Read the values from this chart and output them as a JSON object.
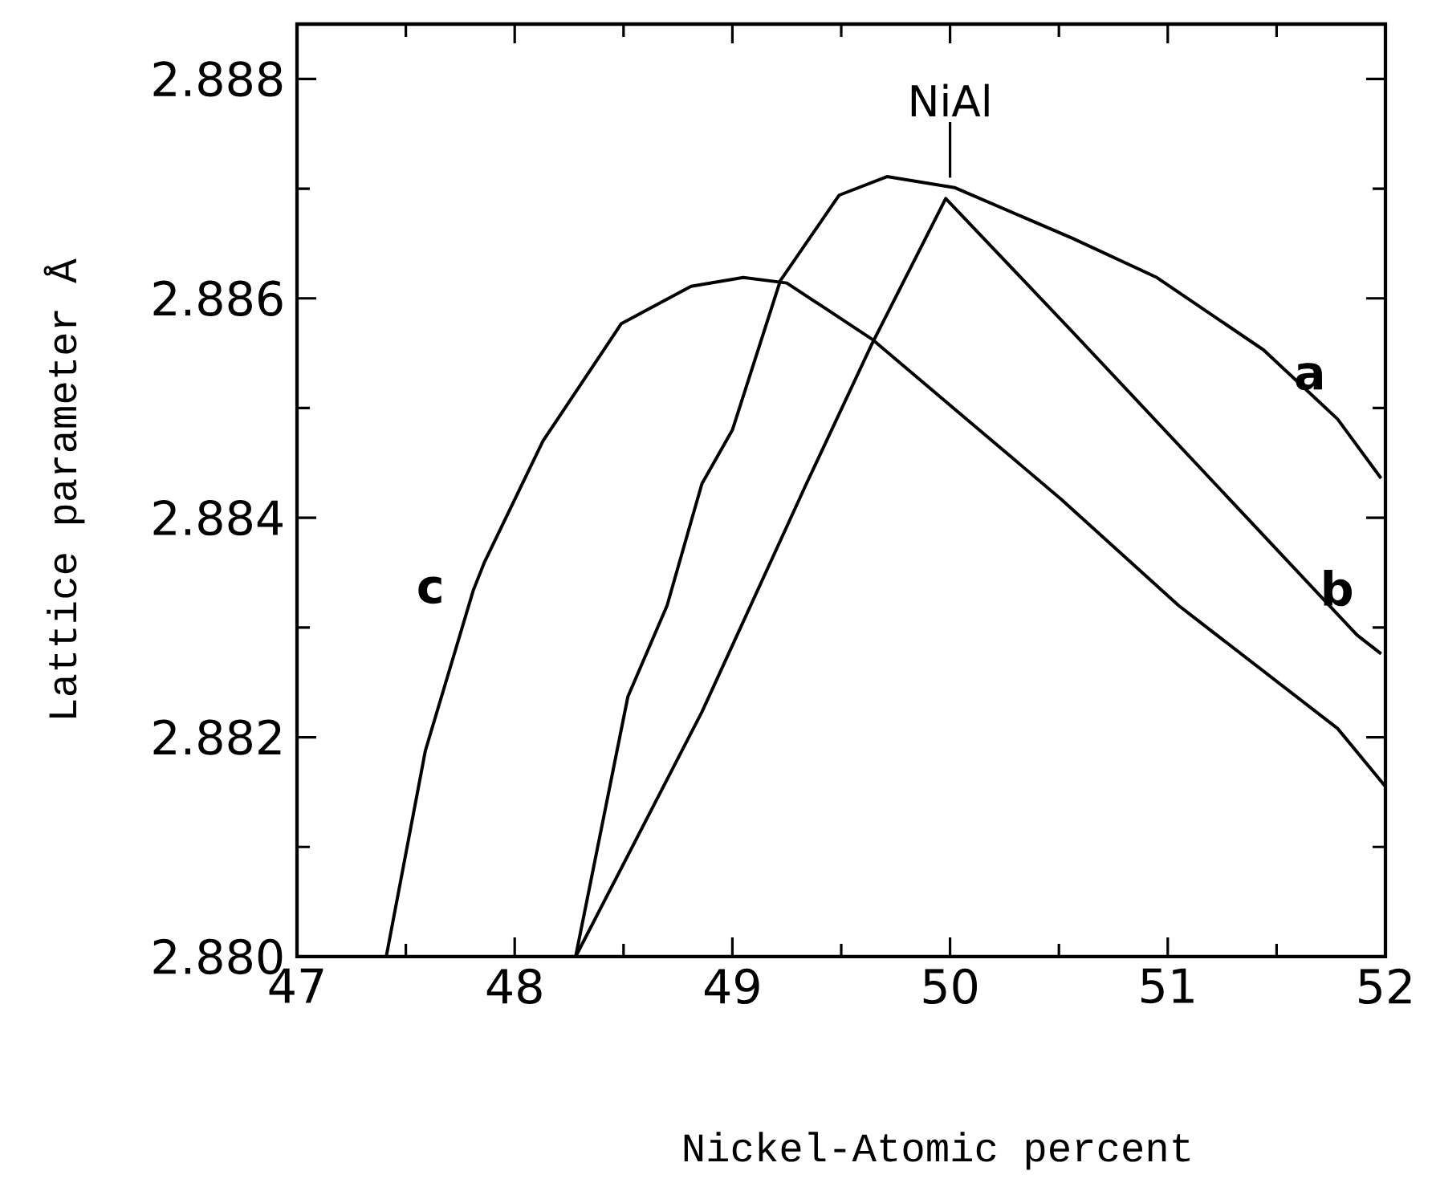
{
  "chart_data": {
    "type": "line",
    "xlabel": "Nickel-Atomic percent",
    "ylabel": "Lattice parameter Å",
    "xlim": [
      47,
      52
    ],
    "ylim": [
      2.88,
      2.8885
    ],
    "xticks": [
      47,
      {
        "value": 47.5,
        "label": null
      },
      48,
      {
        "value": 48.5,
        "label": null
      },
      49,
      {
        "value": 49.5,
        "label": null
      },
      50,
      {
        "value": 50.5,
        "label": null
      },
      51,
      {
        "value": 51.5,
        "label": null
      },
      52
    ],
    "yticks": [
      {
        "value": 2.88,
        "label": "2.880"
      },
      {
        "value": 2.881,
        "label": null
      },
      2.882,
      {
        "value": 2.883,
        "label": null
      },
      2.884,
      {
        "value": 2.885,
        "label": null
      },
      2.886,
      {
        "value": 2.887,
        "label": null
      },
      2.888
    ],
    "annotations": [
      {
        "text": "NiAl",
        "x": 50,
        "y": 2.8871
      }
    ],
    "grid": false,
    "marker": "none",
    "line_style": "solid",
    "series": [
      {
        "name": "a",
        "color": "#000000",
        "x": [
          48.28,
          48.52,
          48.7,
          48.86,
          49.0,
          49.22,
          49.49,
          49.71,
          50.02,
          50.56,
          50.95,
          51.44,
          51.78,
          51.98
        ],
        "values": [
          2.88,
          2.88237,
          2.8832,
          2.88431,
          2.8848,
          2.88616,
          2.88694,
          2.88711,
          2.88701,
          2.88655,
          2.88619,
          2.88553,
          2.8849,
          2.88436
        ]
      },
      {
        "name": "b",
        "color": "#000000",
        "x": [
          48.28,
          48.86,
          49.34,
          49.64,
          49.98,
          50.56,
          51.87,
          51.98
        ],
        "values": [
          2.88,
          2.88223,
          2.88431,
          2.88558,
          2.88691,
          2.8857,
          2.88293,
          2.88276
        ]
      },
      {
        "name": "c",
        "color": "#000000",
        "x": [
          47.41,
          47.59,
          47.81,
          47.86,
          48.13,
          48.49,
          48.81,
          49.05,
          49.25,
          49.64,
          50.51,
          51.05,
          51.78,
          52.0
        ],
        "values": [
          2.88,
          2.88188,
          2.88334,
          2.88359,
          2.8847,
          2.88577,
          2.88611,
          2.88619,
          2.88614,
          2.88563,
          2.88417,
          2.8832,
          2.88208,
          2.88155
        ]
      }
    ]
  }
}
